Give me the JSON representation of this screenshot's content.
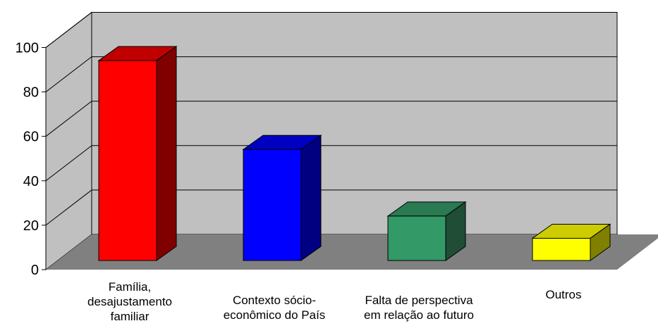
{
  "chart_data": {
    "type": "bar",
    "title": "",
    "xlabel": "",
    "ylabel": "",
    "ylim": [
      0,
      100
    ],
    "yticks": [
      "0",
      "20",
      "40",
      "60",
      "80",
      "100"
    ],
    "grid": true,
    "style": "3d-column",
    "wall_color": "#c0c0c0",
    "floor_color": "#808080",
    "categories": [
      [
        "Família,",
        "desajustamento",
        "familiar"
      ],
      [
        "Contexto sócio-",
        "econômico do País"
      ],
      [
        "Falta de perspectiva",
        "em relação ao futuro"
      ],
      [
        "Outros"
      ]
    ],
    "values": [
      90,
      50,
      20,
      10
    ],
    "colors": [
      {
        "front": "#ff0000",
        "top": "#c00000",
        "side": "#800000"
      },
      {
        "front": "#0000ff",
        "top": "#0000c0",
        "side": "#000080"
      },
      {
        "front": "#339966",
        "top": "#2a7a52",
        "side": "#1f4d36"
      },
      {
        "front": "#ffff00",
        "top": "#cccc00",
        "side": "#808000"
      }
    ]
  }
}
